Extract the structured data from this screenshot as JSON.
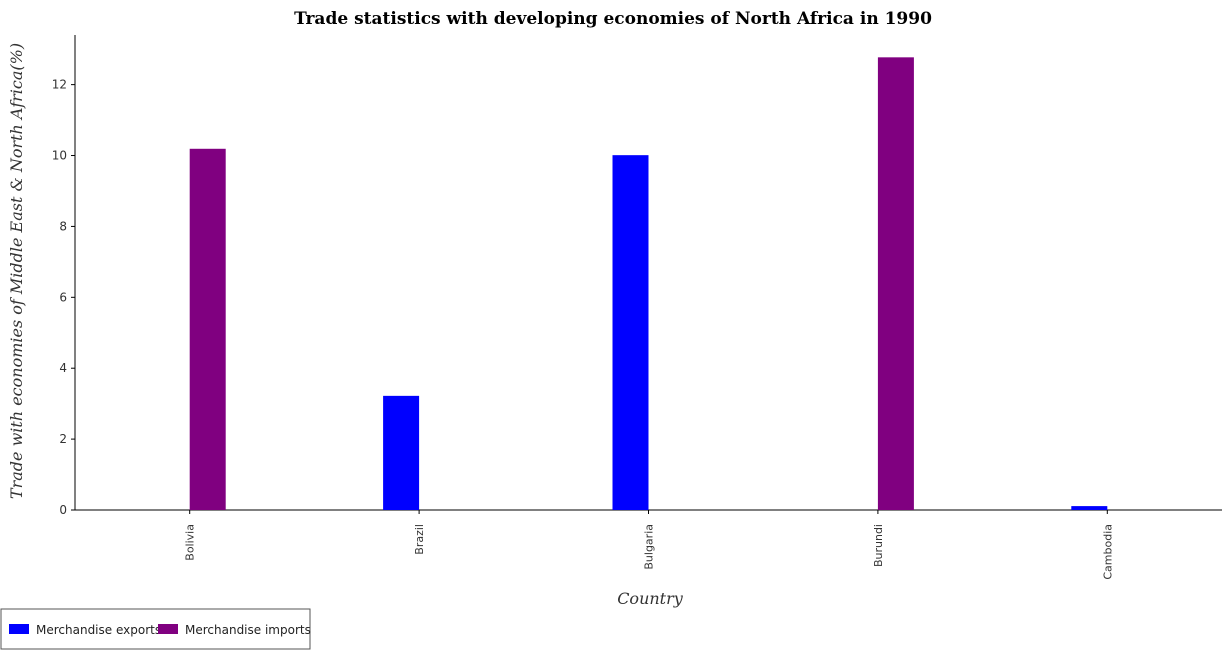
{
  "chart_data": {
    "type": "bar",
    "title": "Trade statistics with developing economies of North Africa in 1990",
    "xlabel": "Country",
    "ylabel": "Trade with economies of Middle East & North Africa(%)",
    "categories": [
      "Bolivia",
      "Brazil",
      "Bulgaria",
      "Burundi",
      "Cambodia"
    ],
    "series": [
      {
        "name": "Merchandise exports",
        "color": "#0000ff",
        "values": [
          0,
          3.22,
          10.01,
          0,
          0.11
        ]
      },
      {
        "name": "Merchandise imports",
        "color": "#800080",
        "values": [
          10.19,
          0,
          0,
          12.77,
          0
        ]
      }
    ],
    "yticks": [
      "0",
      "2",
      "4",
      "6",
      "8",
      "10",
      "12"
    ],
    "ylim": [
      0,
      13.4
    ],
    "grid": false,
    "legend_position": "bottom-left"
  }
}
